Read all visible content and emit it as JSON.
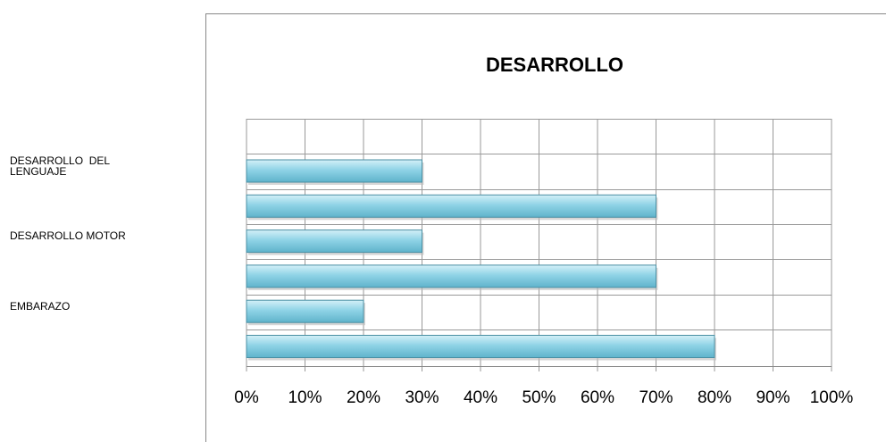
{
  "chart_data": {
    "type": "bar",
    "orientation": "horizontal",
    "title": "DESARROLLO",
    "categories": [
      "DESARROLLO  DEL LENGUAJE",
      null,
      "DESARROLLO MOTOR",
      null,
      "EMBARAZO",
      null
    ],
    "values": [
      30,
      70,
      30,
      70,
      20,
      80
    ],
    "color": "#8fd3e6",
    "xlim": [
      0,
      100
    ],
    "xticks": [
      {
        "value": 0,
        "label": "0%"
      },
      {
        "value": 10,
        "label": "10%"
      },
      {
        "value": 20,
        "label": "20%"
      },
      {
        "value": 30,
        "label": "30%"
      },
      {
        "value": 40,
        "label": "40%"
      },
      {
        "value": 50,
        "label": "50%"
      },
      {
        "value": 60,
        "label": "60%"
      },
      {
        "value": 70,
        "label": "70%"
      },
      {
        "value": 80,
        "label": "80%"
      },
      {
        "value": 90,
        "label": "90%"
      },
      {
        "value": 100,
        "label": "100%"
      }
    ],
    "grid": true
  }
}
